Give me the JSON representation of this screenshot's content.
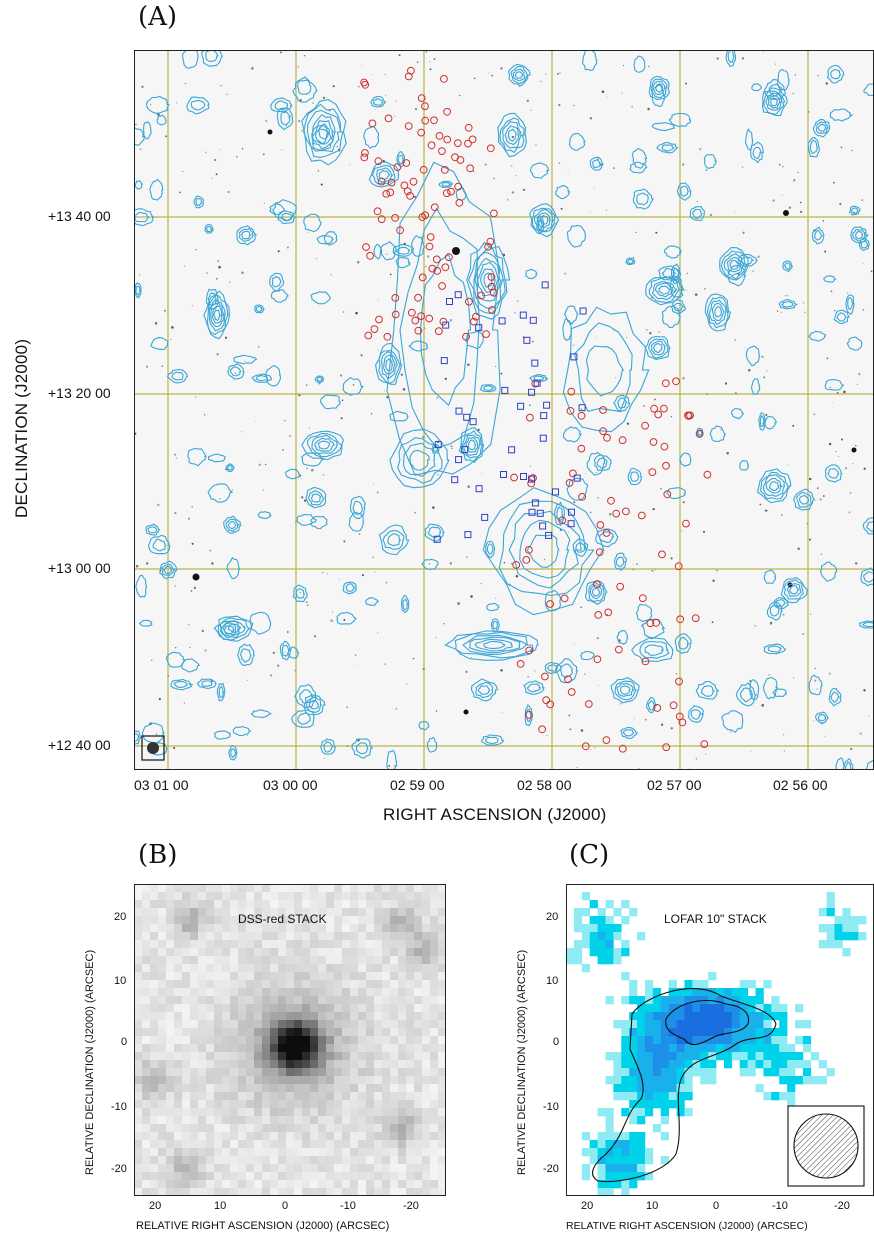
{
  "panel_a": {
    "letter": "(A)",
    "ylabel": "DECLINATION (J2000)",
    "xlabel": "RIGHT ASCENSION (J2000)",
    "dec_ticks": [
      "+13 40 00",
      "+13 20 00",
      "+13 00 00",
      "+12 40 00"
    ],
    "ra_ticks": [
      "03 01 00",
      "03 00 00",
      "02 59 00",
      "02 58 00",
      "02 57 00",
      "02 56 00"
    ],
    "colors": {
      "contour": "#3aa6d6",
      "grid": "#b9b54a",
      "red_marker": "#d03030",
      "blue_marker": "#3040c0"
    }
  },
  "panel_b": {
    "letter": "(B)",
    "title": "DSS-red STACK",
    "ylabel": "RELATIVE DECLINATION  (J2000) (ARCSEC)",
    "xlabel": "RELATIVE RIGHT ASCENSION  (J2000) (ARCSEC)",
    "xticks": [
      "20",
      "10",
      "0",
      "-10",
      "-20"
    ],
    "yticks": [
      "20",
      "10",
      "0",
      "-10",
      "-20"
    ]
  },
  "panel_c": {
    "letter": "(C)",
    "title": "LOFAR 10\" STACK",
    "ylabel": "RELATIVE DECLINATION  (J2000) (ARCSEC)",
    "xlabel": "RELATIVE RIGHT ASCENSION  (J2000) (ARCSEC)",
    "xticks": [
      "20",
      "10",
      "0",
      "-10",
      "-20"
    ],
    "yticks": [
      "20",
      "10",
      "0",
      "-10",
      "-20"
    ],
    "colors": {
      "emission": "#00d2ea",
      "core": "#1a70e0"
    }
  }
}
